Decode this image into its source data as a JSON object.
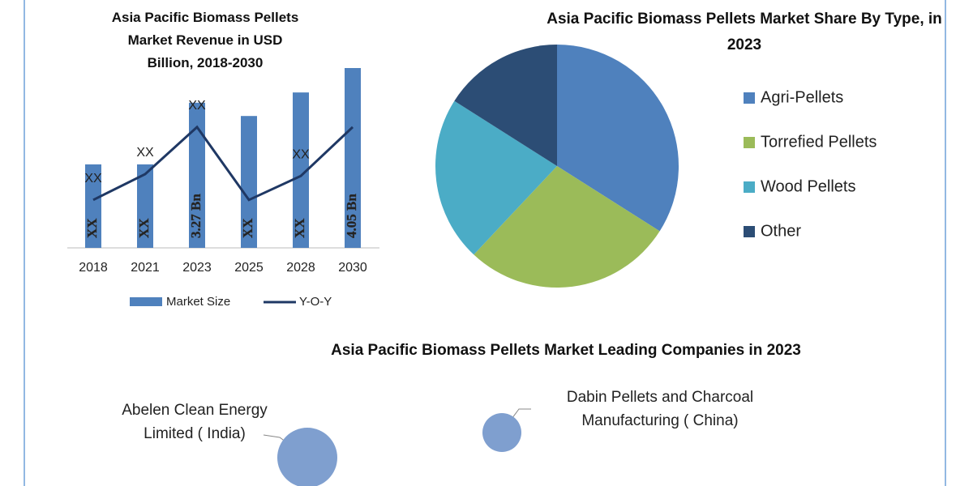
{
  "chart_data": [
    {
      "type": "bar",
      "title": "Asia Pacific Biomass Pellets Market Revenue in USD Billion, 2018-2030",
      "categories": [
        "2018",
        "2021",
        "2023",
        "2025",
        "2028",
        "2030"
      ],
      "series": [
        {
          "name": "Market Size",
          "type": "bar",
          "color": "#4f81bd",
          "values": [
            1.88,
            1.88,
            3.27,
            2.97,
            3.5,
            4.05
          ],
          "value_labels": [
            "XX",
            "XX",
            "3.27 Bn",
            "XX",
            "XX",
            "4.05 Bn"
          ]
        },
        {
          "name": "Y-O-Y",
          "type": "line",
          "color": "#1f3864",
          "values": [
            1.08,
            1.66,
            2.72,
            1.08,
            1.62,
            2.72
          ],
          "value_labels": [
            "XX",
            "XX",
            "XX",
            null,
            "XX",
            null
          ]
        }
      ]
    },
    {
      "type": "pie",
      "title": "Asia Pacific Biomass Pellets Market Share By Type, in 2023",
      "categories": [
        "Agri-Pellets",
        "Torrefied Pellets",
        "Wood Pellets",
        "Other"
      ],
      "values": [
        34,
        28,
        22,
        16
      ],
      "colors": [
        "#4f81bd",
        "#9bbb59",
        "#4bacc6",
        "#2c4d75"
      ]
    },
    {
      "type": "bubble",
      "title": "Asia Pacific Biomass Pellets Market Leading Companies in 2023",
      "labels": [
        "Abelen Clean Energy Limited ( India)",
        "Dabin Pellets and Charcoal Manufacturing ( China)"
      ],
      "color": "#7f9fcf"
    }
  ]
}
